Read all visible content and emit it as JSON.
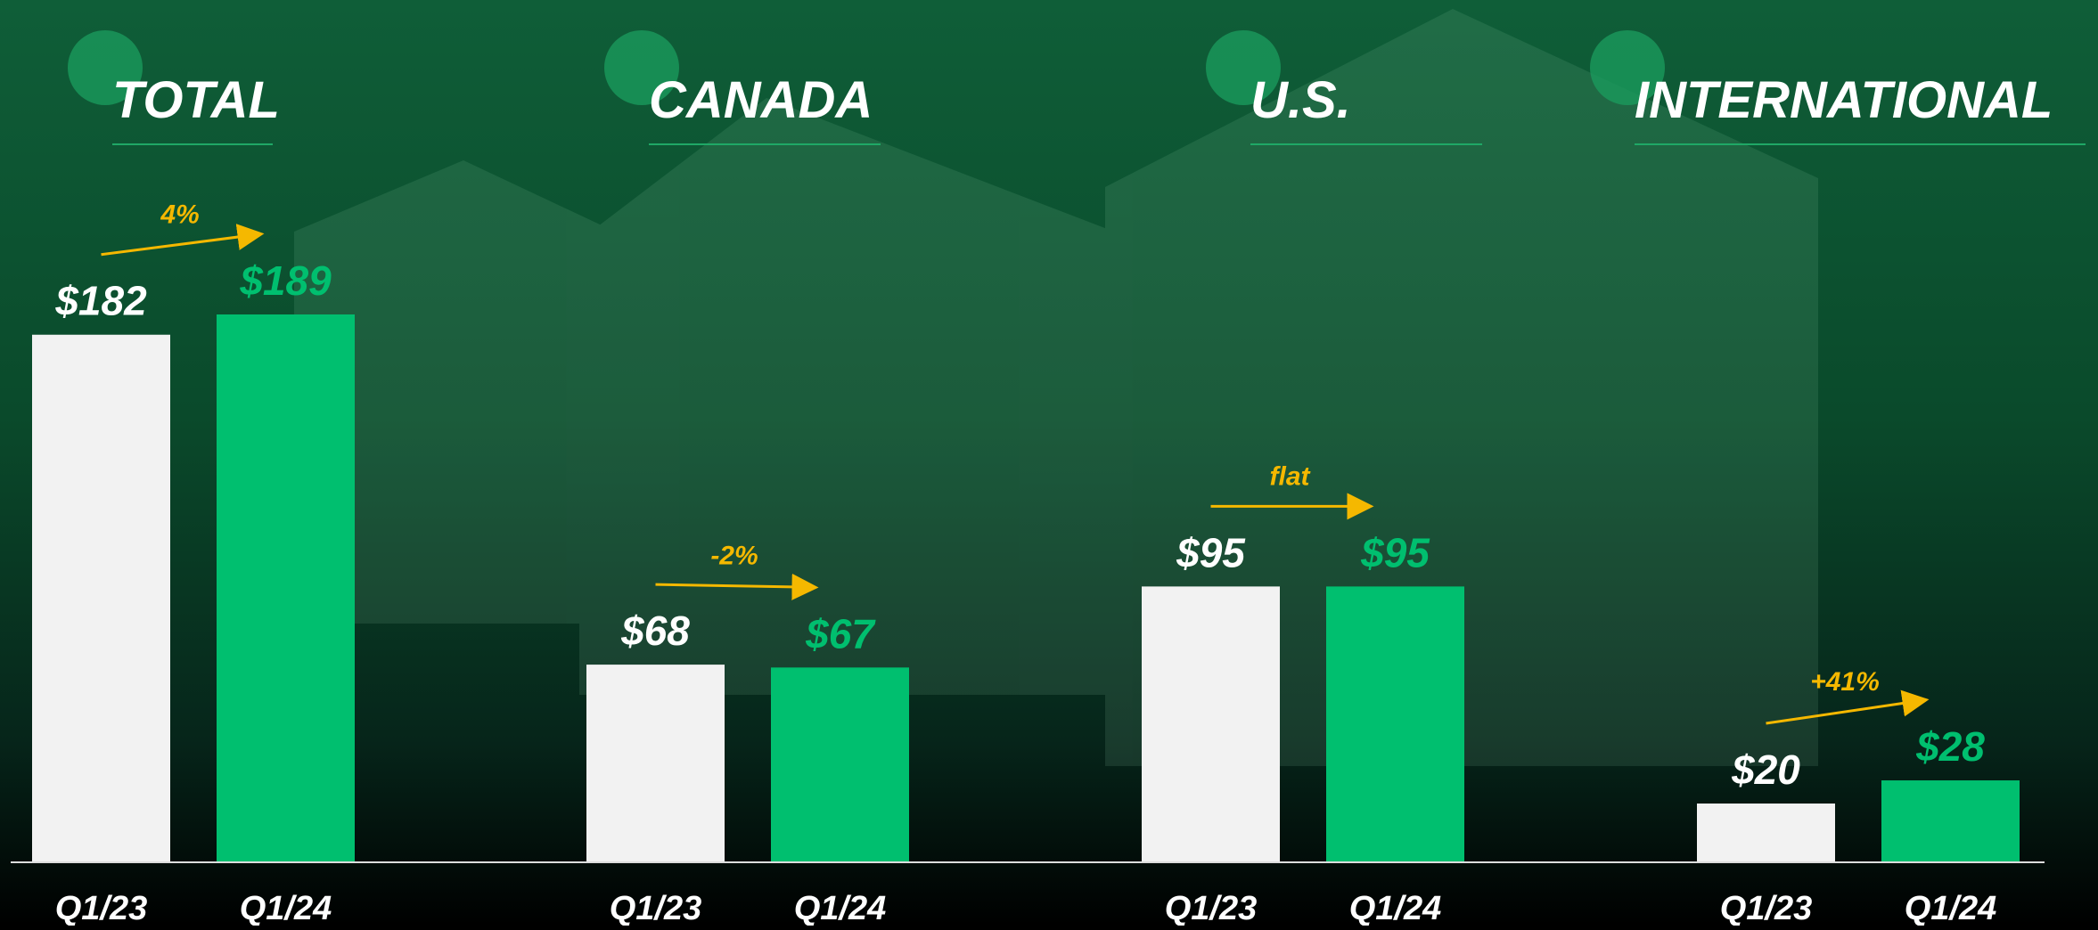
{
  "chart_data": [
    {
      "type": "bar",
      "title": "TOTAL",
      "categories": [
        "Q1/23",
        "Q1/24"
      ],
      "values": [
        182,
        189
      ],
      "value_labels": [
        "$182",
        "$189"
      ],
      "colors": [
        "#f2f2f2",
        "#00bf6f"
      ],
      "annotation": "4%"
    },
    {
      "type": "bar",
      "title": "CANADA",
      "categories": [
        "Q1/23",
        "Q1/24"
      ],
      "values": [
        68,
        67
      ],
      "value_labels": [
        "$68",
        "$67"
      ],
      "colors": [
        "#f2f2f2",
        "#00bf6f"
      ],
      "annotation": "-2%"
    },
    {
      "type": "bar",
      "title": "U.S.",
      "categories": [
        "Q1/23",
        "Q1/24"
      ],
      "values": [
        95,
        95
      ],
      "value_labels": [
        "$95",
        "$95"
      ],
      "colors": [
        "#f2f2f2",
        "#00bf6f"
      ],
      "annotation": "flat"
    },
    {
      "type": "bar",
      "title": "INTERNATIONAL",
      "categories": [
        "Q1/23",
        "Q1/24"
      ],
      "values": [
        20,
        28
      ],
      "value_labels": [
        "$20",
        "$28"
      ],
      "colors": [
        "#f2f2f2",
        "#00bf6f"
      ],
      "annotation": "+41%"
    }
  ]
}
